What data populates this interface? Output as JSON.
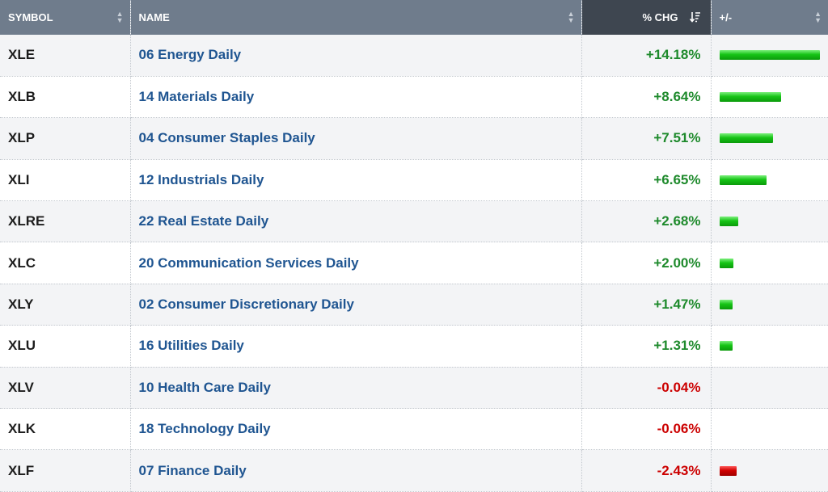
{
  "header": {
    "symbol_label": "SYMBOL",
    "name_label": "NAME",
    "chg_label": "% CHG",
    "bar_label": "+/-"
  },
  "colors": {
    "positive": "#1e8a2c",
    "negative": "#cc0000",
    "link": "#1f5591",
    "header": "#6f7c8c",
    "header_sorted": "#3e4650"
  },
  "rows": [
    {
      "symbol": "XLE",
      "name": "06 Energy Daily",
      "chg": "+14.18%",
      "value": 14.18
    },
    {
      "symbol": "XLB",
      "name": "14 Materials Daily",
      "chg": "+8.64%",
      "value": 8.64
    },
    {
      "symbol": "XLP",
      "name": "04 Consumer Staples Daily",
      "chg": "+7.51%",
      "value": 7.51
    },
    {
      "symbol": "XLI",
      "name": "12 Industrials Daily",
      "chg": "+6.65%",
      "value": 6.65
    },
    {
      "symbol": "XLRE",
      "name": "22 Real Estate Daily",
      "chg": "+2.68%",
      "value": 2.68
    },
    {
      "symbol": "XLC",
      "name": "20 Communication Services Daily",
      "chg": "+2.00%",
      "value": 2.0
    },
    {
      "symbol": "XLY",
      "name": "02 Consumer Discretionary Daily",
      "chg": "+1.47%",
      "value": 1.47
    },
    {
      "symbol": "XLU",
      "name": "16 Utilities Daily",
      "chg": "+1.31%",
      "value": 1.31
    },
    {
      "symbol": "XLV",
      "name": "10 Health Care Daily",
      "chg": "-0.04%",
      "value": -0.04
    },
    {
      "symbol": "XLK",
      "name": "18 Technology Daily",
      "chg": "-0.06%",
      "value": -0.06
    },
    {
      "symbol": "XLF",
      "name": "07 Finance Daily",
      "chg": "-2.43%",
      "value": -2.43
    }
  ]
}
